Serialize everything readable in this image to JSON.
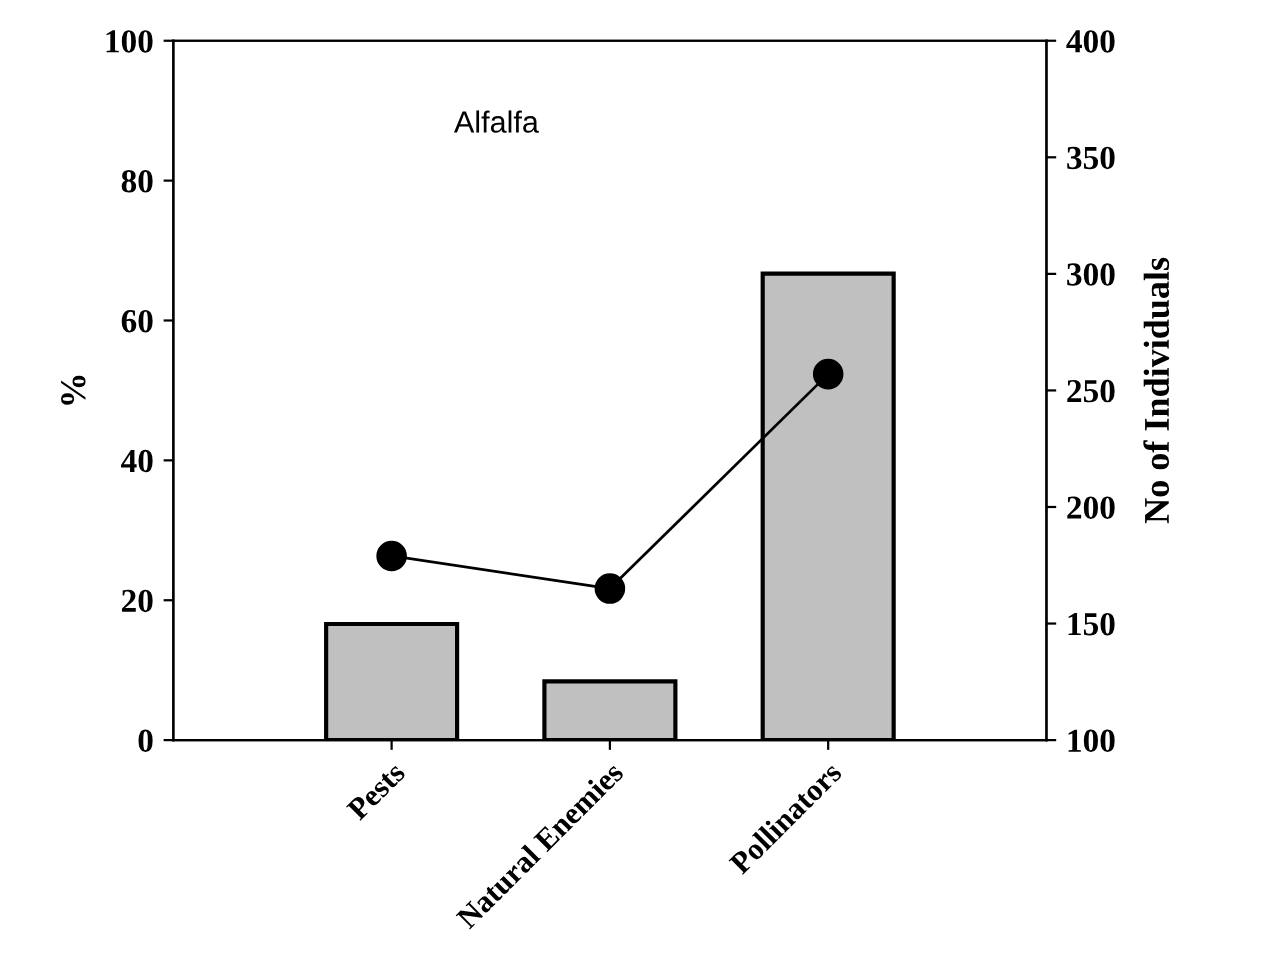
{
  "chart_data": {
    "type": "bar",
    "categories": [
      "Pests",
      "Natural Enemies",
      "Pollinators"
    ],
    "series": [
      {
        "color": "#c0c0c0",
        "values": [
          16.6,
          8.4,
          66.7
        ]
      },
      {
        "type": "line",
        "axis": "y2",
        "color": "#000000",
        "marker": "circle",
        "values": [
          179,
          165,
          257
        ]
      }
    ],
    "ylabel": "%",
    "y2label": "No of Individuals",
    "annotations": [
      "Alfalfa"
    ],
    "ylim": [
      0,
      100
    ],
    "yticks": [
      0,
      20,
      40,
      60,
      80,
      100
    ],
    "y2lim": [
      100,
      400
    ],
    "y2ticks": [
      100,
      150,
      200,
      250,
      300,
      350,
      400
    ],
    "grid": false,
    "legend": false
  }
}
